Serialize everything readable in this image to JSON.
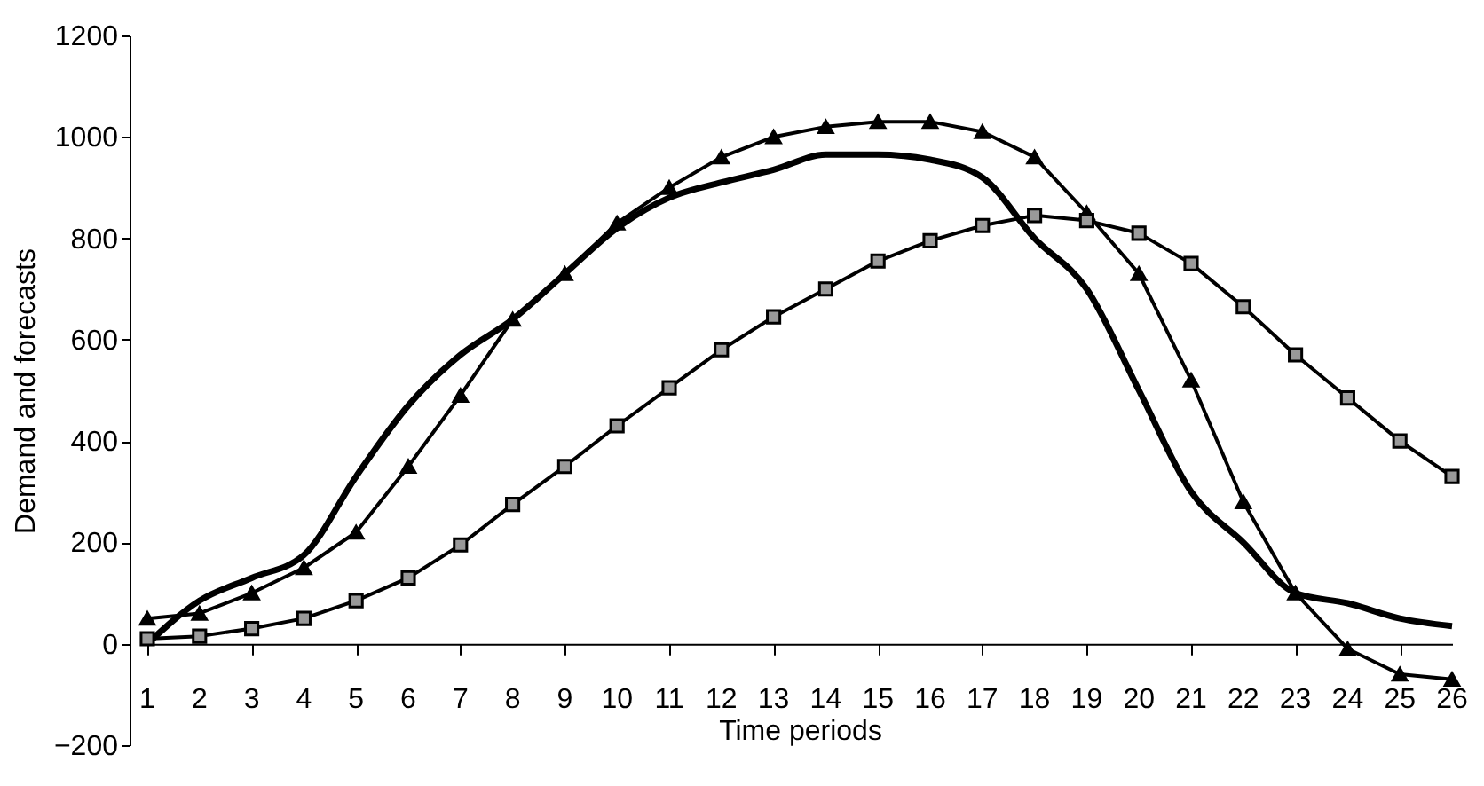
{
  "chart_data": {
    "type": "line",
    "xlabel": "Time periods",
    "ylabel": "Demand and forecasts",
    "x": [
      1,
      2,
      3,
      4,
      5,
      6,
      7,
      8,
      9,
      10,
      11,
      12,
      13,
      14,
      15,
      16,
      17,
      18,
      19,
      20,
      21,
      22,
      23,
      24,
      25,
      26
    ],
    "xlim": [
      1,
      26
    ],
    "xticks": [
      1,
      2,
      3,
      4,
      5,
      6,
      7,
      8,
      9,
      10,
      11,
      12,
      13,
      14,
      15,
      16,
      17,
      18,
      19,
      20,
      21,
      22,
      23,
      24,
      25,
      26
    ],
    "ylim": [
      -200,
      1200
    ],
    "yticks": [
      -200,
      0,
      200,
      400,
      600,
      800,
      1000,
      1200
    ],
    "grid": false,
    "series": [
      {
        "color": "#000000",
        "marker": "none",
        "values": [
          0,
          85,
          130,
          175,
          330,
          470,
          570,
          640,
          730,
          820,
          880,
          910,
          935,
          965,
          965,
          955,
          920,
          800,
          700,
          500,
          300,
          200,
          100,
          80,
          50,
          35
        ]
      },
      {
        "color": "#000000",
        "marker": "triangle",
        "values": [
          50,
          60,
          100,
          150,
          220,
          350,
          490,
          640,
          730,
          830,
          900,
          960,
          1000,
          1020,
          1030,
          1030,
          1010,
          960,
          850,
          730,
          520,
          280,
          100,
          -10,
          -60,
          -70
        ]
      },
      {
        "color": "#000000",
        "marker": "square",
        "values": [
          10,
          15,
          30,
          50,
          85,
          130,
          195,
          275,
          350,
          430,
          505,
          580,
          645,
          700,
          755,
          795,
          825,
          845,
          835,
          810,
          750,
          665,
          570,
          485,
          400,
          330
        ]
      }
    ]
  }
}
